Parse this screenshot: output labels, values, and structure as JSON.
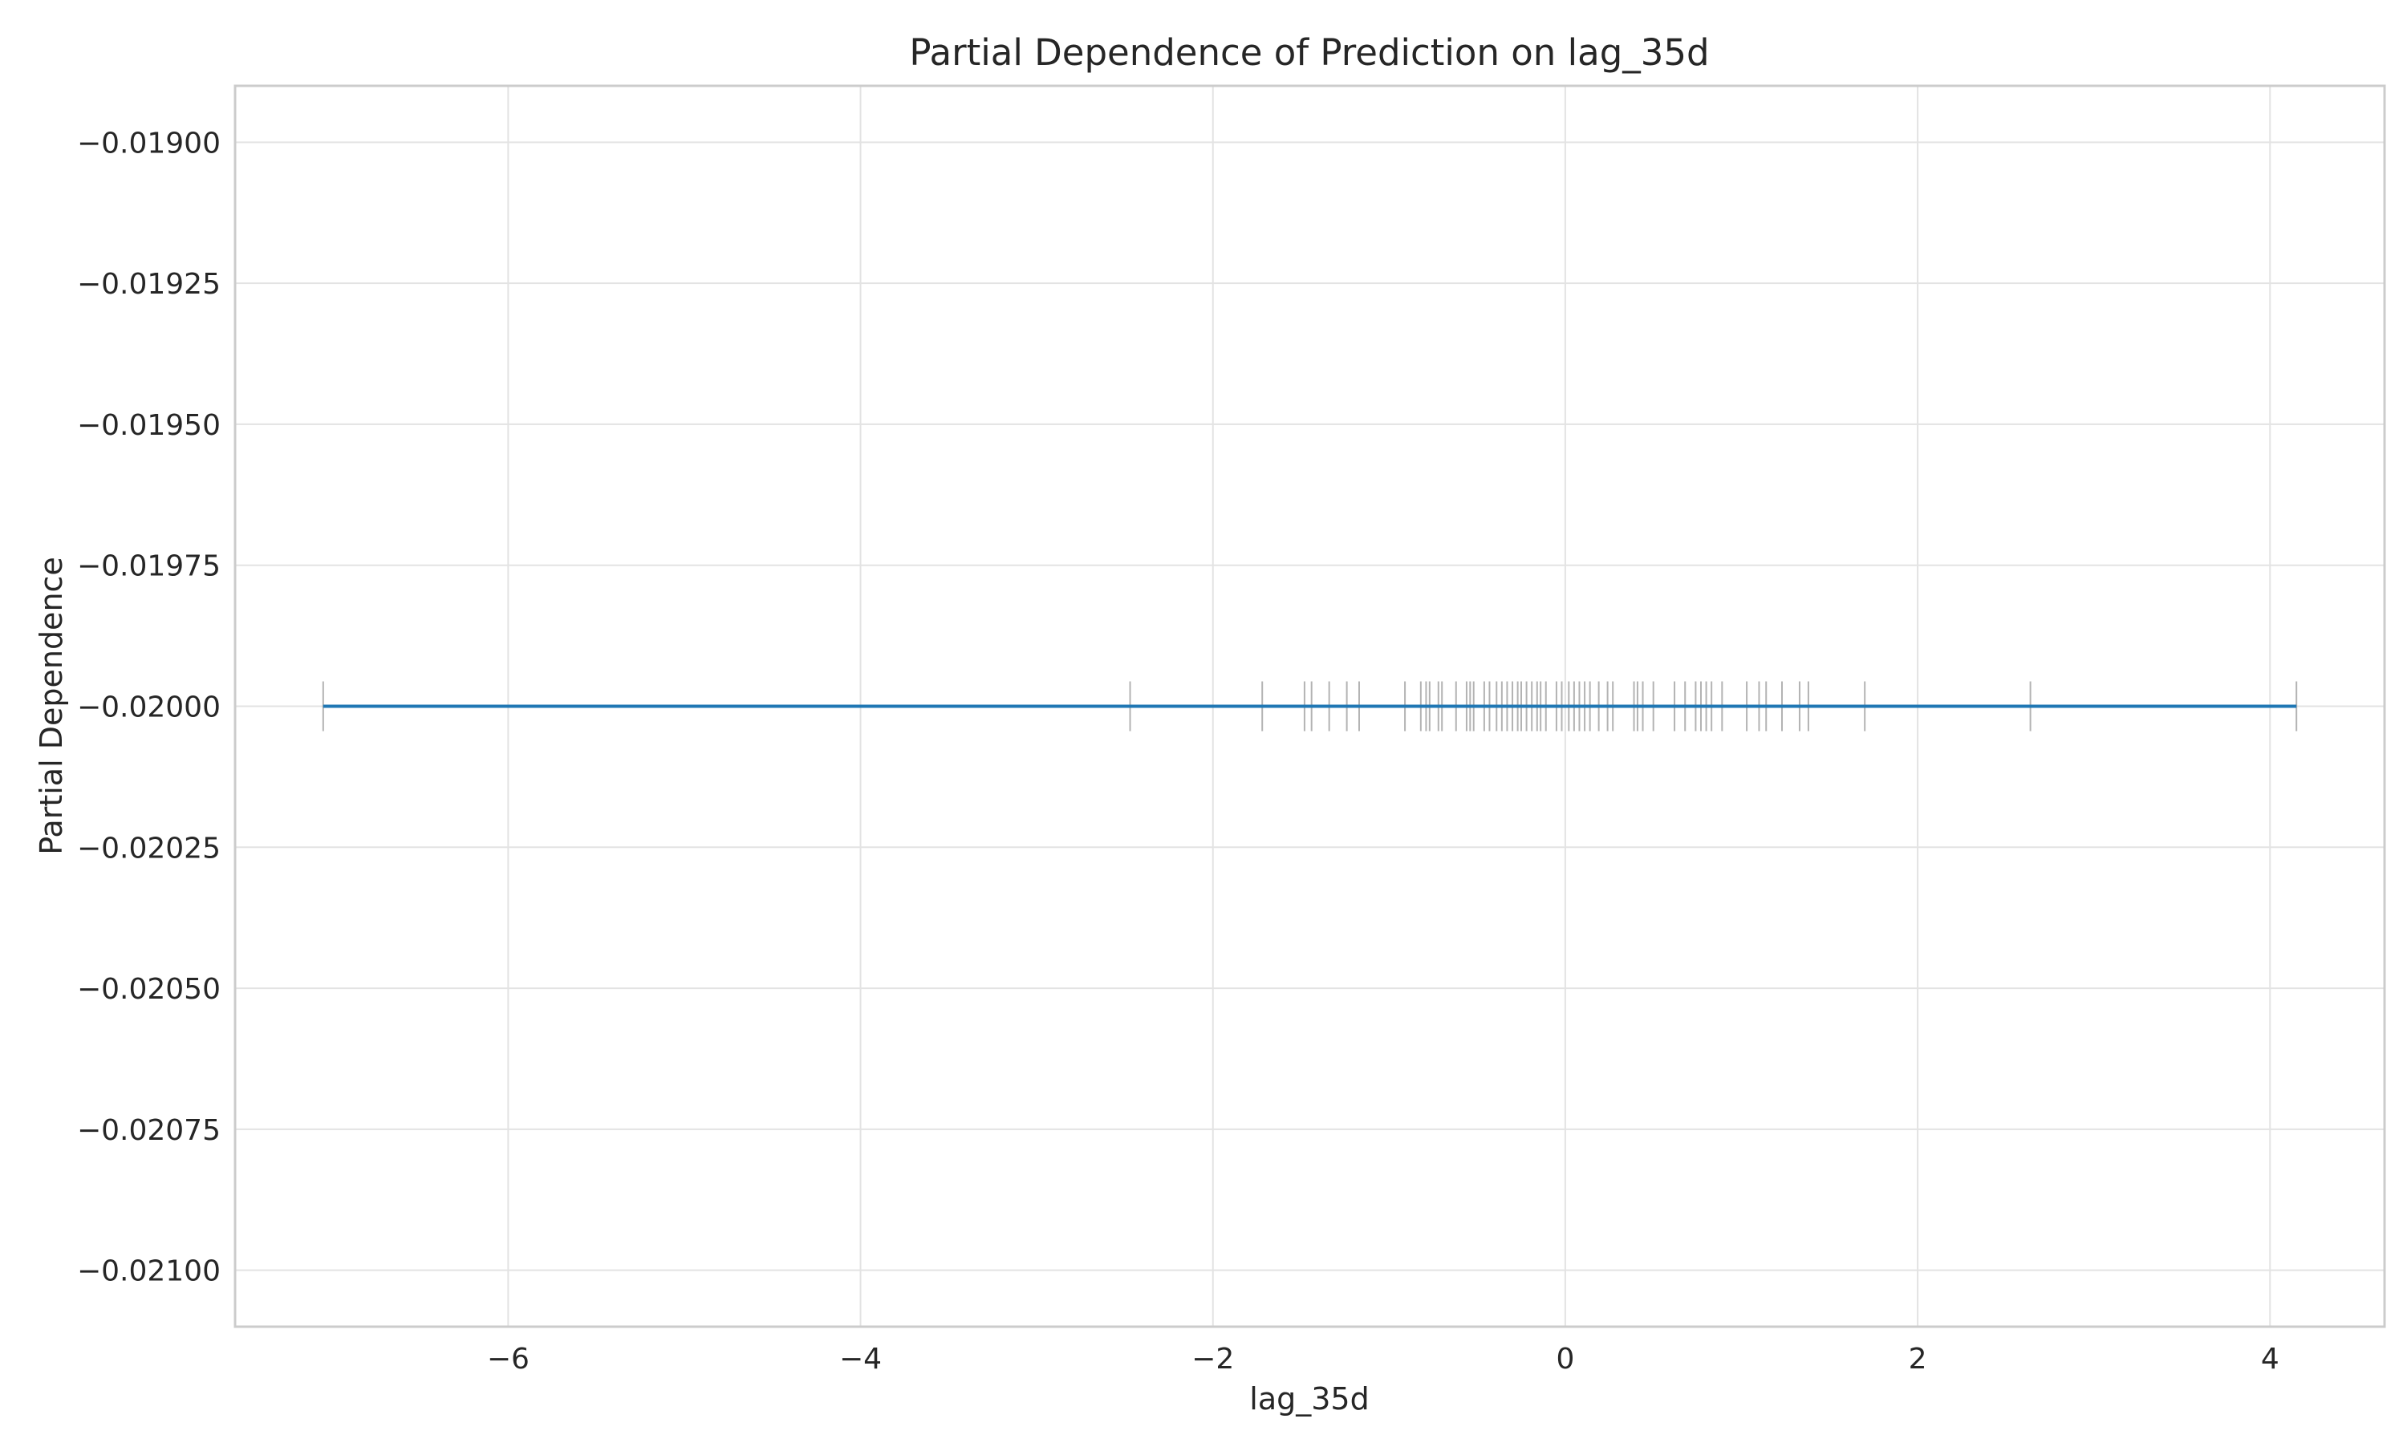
{
  "chart_data": {
    "type": "line",
    "title": "Partial Dependence of Prediction on lag_35d",
    "xlabel": "lag_35d",
    "ylabel": "Partial Dependence",
    "xlim": [
      -7.55,
      4.65
    ],
    "ylim": [
      -0.0211,
      -0.0189
    ],
    "x_ticks": [
      -6,
      -4,
      -2,
      0,
      2,
      4
    ],
    "x_tick_labels": [
      "−6",
      "−4",
      "−2",
      "0",
      "2",
      "4"
    ],
    "y_ticks": [
      -0.019,
      -0.01925,
      -0.0195,
      -0.01975,
      -0.02,
      -0.02025,
      -0.0205,
      -0.02075,
      -0.021
    ],
    "y_tick_labels": [
      "−0.01900",
      "−0.01925",
      "−0.01950",
      "−0.01975",
      "−0.02000",
      "−0.02025",
      "−0.02050",
      "−0.02075",
      "−0.02100"
    ],
    "grid": true,
    "series": [
      {
        "color": "#1f77b4",
        "x": [
          -7.05,
          4.15
        ],
        "y": [
          -0.02,
          -0.02
        ]
      }
    ],
    "rug": {
      "y": -0.02,
      "color": "#999999",
      "values": [
        -7.05,
        -2.47,
        -1.72,
        -1.48,
        -1.44,
        -1.34,
        -1.24,
        -1.17,
        -0.91,
        -0.82,
        -0.79,
        -0.77,
        -0.72,
        -0.7,
        -0.62,
        -0.56,
        -0.54,
        -0.52,
        -0.46,
        -0.43,
        -0.39,
        -0.36,
        -0.33,
        -0.3,
        -0.27,
        -0.25,
        -0.22,
        -0.19,
        -0.16,
        -0.14,
        -0.11,
        -0.05,
        -0.02,
        0.02,
        0.05,
        0.08,
        0.11,
        0.14,
        0.19,
        0.24,
        0.27,
        0.39,
        0.41,
        0.44,
        0.5,
        0.62,
        0.68,
        0.74,
        0.77,
        0.8,
        0.83,
        0.89,
        1.03,
        1.1,
        1.14,
        1.23,
        1.33,
        1.38,
        1.7,
        2.64,
        4.15
      ]
    }
  }
}
